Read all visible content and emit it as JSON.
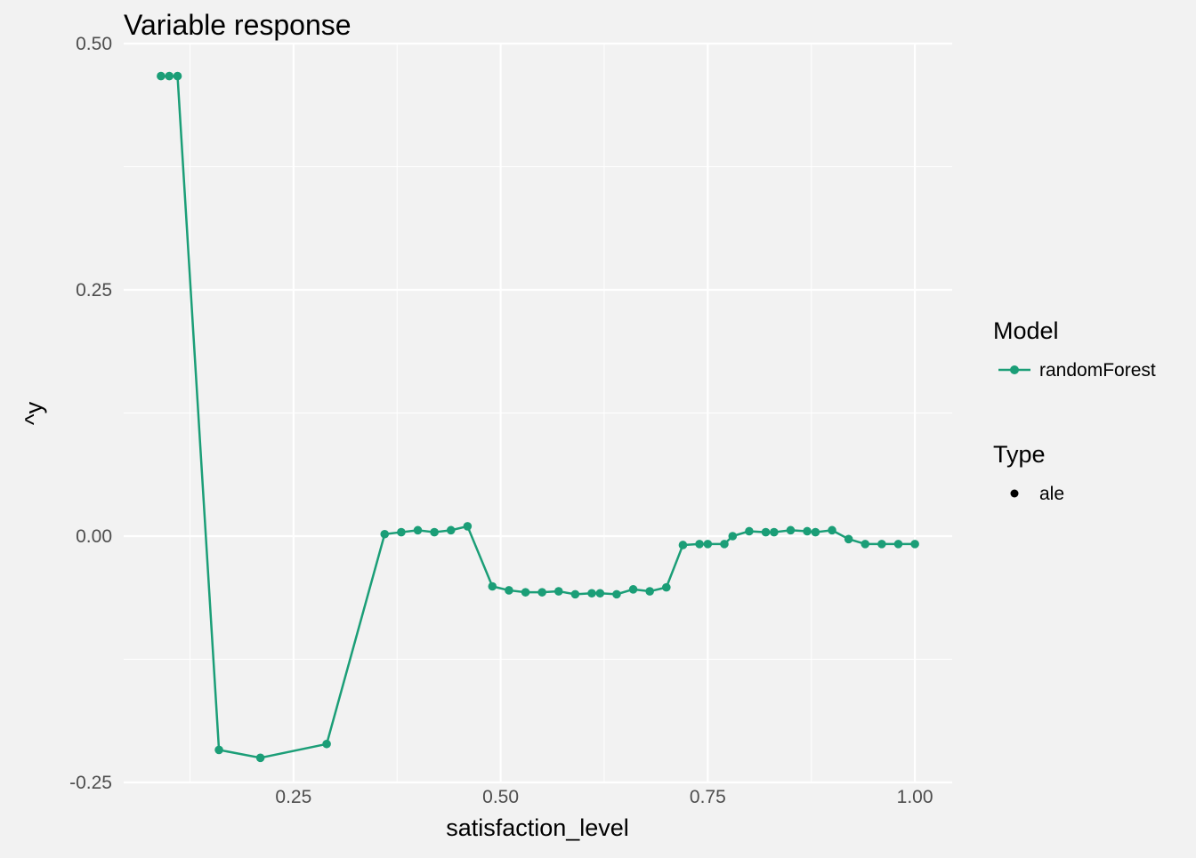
{
  "chart_data": {
    "type": "line",
    "title": "Variable response",
    "xlabel": "satisfaction_level",
    "ylabel": "^y",
    "xlim": [
      0.045,
      1.045
    ],
    "ylim": [
      -0.25,
      0.5
    ],
    "x_ticks": [
      0.25,
      0.5,
      0.75,
      1.0
    ],
    "x_tick_labels": [
      "0.25",
      "0.50",
      "0.75",
      "1.00"
    ],
    "y_ticks": [
      -0.25,
      0.0,
      0.25,
      0.5
    ],
    "y_tick_labels": [
      "-0.25",
      "0.00",
      "0.25",
      "0.50"
    ],
    "grid": true,
    "legend_placement": "right",
    "series": [
      {
        "name": "randomForest",
        "color": "#1b9e77",
        "x": [
          0.09,
          0.1,
          0.11,
          0.16,
          0.21,
          0.29,
          0.36,
          0.38,
          0.4,
          0.42,
          0.44,
          0.46,
          0.49,
          0.51,
          0.53,
          0.55,
          0.57,
          0.59,
          0.61,
          0.62,
          0.64,
          0.66,
          0.68,
          0.7,
          0.72,
          0.74,
          0.75,
          0.77,
          0.78,
          0.8,
          0.82,
          0.83,
          0.85,
          0.87,
          0.88,
          0.9,
          0.92,
          0.94,
          0.96,
          0.98,
          1.0
        ],
        "y": [
          0.467,
          0.467,
          0.467,
          -0.217,
          -0.225,
          -0.211,
          0.002,
          0.004,
          0.006,
          0.004,
          0.006,
          0.01,
          -0.051,
          -0.055,
          -0.057,
          -0.057,
          -0.056,
          -0.059,
          -0.058,
          -0.058,
          -0.059,
          -0.054,
          -0.056,
          -0.052,
          -0.009,
          -0.008,
          -0.008,
          -0.008,
          0.0,
          0.005,
          0.004,
          0.004,
          0.006,
          0.005,
          0.004,
          0.006,
          -0.003,
          -0.008,
          -0.008,
          -0.008,
          -0.008
        ]
      }
    ],
    "legend": {
      "model_title": "Model",
      "model_entry": "randomForest",
      "type_title": "Type",
      "type_entry": "ale"
    }
  }
}
